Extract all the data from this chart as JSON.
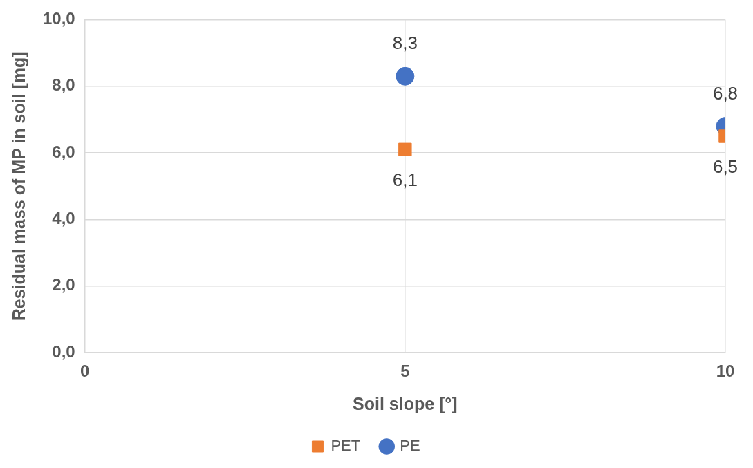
{
  "chart_data": {
    "type": "scatter",
    "xlabel": "Soil slope [°]",
    "ylabel": "Residual mass of MP in soil [mg]",
    "xlim": [
      0,
      10
    ],
    "xticks": [
      0,
      5,
      10
    ],
    "ylim": [
      0,
      10
    ],
    "yticks": [
      {
        "value": 0,
        "label": "0,0"
      },
      {
        "value": 2,
        "label": "2,0"
      },
      {
        "value": 4,
        "label": "4,0"
      },
      {
        "value": 6,
        "label": "6,0"
      },
      {
        "value": 8,
        "label": "8,0"
      },
      {
        "value": 10,
        "label": "10,0"
      }
    ],
    "grid": true,
    "legend": "bottom",
    "x": [
      5,
      10
    ],
    "series": [
      {
        "name": "PET",
        "color": "#ed7d31",
        "marker": "square",
        "values": [
          6.1,
          6.5
        ],
        "value_labels": [
          "6,1",
          "6,5"
        ]
      },
      {
        "name": "PE",
        "color": "#4472c4",
        "marker": "circle",
        "values": [
          8.3,
          6.8
        ],
        "value_labels": [
          "8,3",
          "6,8"
        ]
      }
    ]
  }
}
